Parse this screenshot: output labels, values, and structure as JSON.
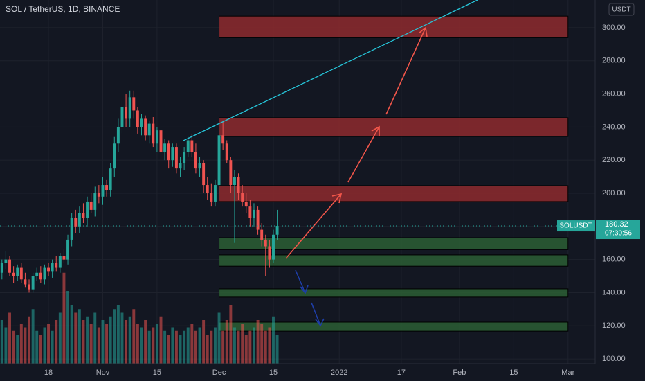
{
  "chart_data": {
    "type": "candlestick",
    "title": "SOL / TetherUS, 1D, BINANCE",
    "currency": "USDT",
    "symbol": "SOLUSDT",
    "last_price": {
      "value": 180.32,
      "label": "180.32"
    },
    "countdown": "07:30:56",
    "up_color": "#26a69a",
    "down_color": "#ef5350",
    "grid": true,
    "xlim": [
      4.5,
      158
    ],
    "xticks": [
      {
        "value": 17,
        "label": "18"
      },
      {
        "value": 31,
        "label": "Nov"
      },
      {
        "value": 45,
        "label": "15"
      },
      {
        "value": 61,
        "label": "Dec"
      },
      {
        "value": 75,
        "label": "15"
      },
      {
        "value": 92,
        "label": "2022"
      },
      {
        "value": 108,
        "label": "17"
      },
      {
        "value": 123,
        "label": "Feb"
      },
      {
        "value": 137,
        "label": "15"
      },
      {
        "value": 151,
        "label": "Mar"
      }
    ],
    "ylim": [
      97.1,
      316.7
    ],
    "yticks": [
      {
        "value": 100,
        "label": "100.00"
      },
      {
        "value": 120,
        "label": "120.00"
      },
      {
        "value": 140,
        "label": "140.00"
      },
      {
        "value": 160,
        "label": "160.00"
      },
      {
        "value": 180,
        "label": "180.00"
      },
      {
        "value": 200,
        "label": "200.00"
      },
      {
        "value": 220,
        "label": "220.00"
      },
      {
        "value": 240,
        "label": "240.00"
      },
      {
        "value": 260,
        "label": "260.00"
      },
      {
        "value": 280,
        "label": "280.00"
      },
      {
        "value": 300,
        "label": "300.00"
      }
    ],
    "y2lim": [
      0,
      100
    ],
    "x": [
      5,
      6,
      7,
      8,
      9,
      10,
      11,
      12,
      13,
      14,
      15,
      16,
      17,
      18,
      19,
      20,
      21,
      22,
      23,
      24,
      25,
      26,
      27,
      28,
      29,
      30,
      31,
      32,
      33,
      34,
      35,
      36,
      37,
      38,
      39,
      40,
      41,
      42,
      43,
      44,
      45,
      46,
      47,
      48,
      49,
      50,
      51,
      52,
      53,
      54,
      55,
      56,
      57,
      58,
      59,
      60,
      61,
      62,
      63,
      64,
      65,
      66,
      67,
      68,
      69,
      70,
      71,
      72,
      73,
      74,
      75,
      76
    ],
    "open": [
      152,
      158,
      160,
      152,
      150,
      155,
      148,
      145,
      142,
      150,
      152,
      148,
      155,
      153,
      158,
      155,
      162,
      160,
      172,
      185,
      180,
      188,
      185,
      195,
      190,
      200,
      198,
      205,
      202,
      215,
      230,
      240,
      252,
      245,
      258,
      250,
      240,
      245,
      235,
      242,
      230,
      238,
      225,
      230,
      220,
      228,
      215,
      218,
      225,
      232,
      225,
      215,
      218,
      205,
      200,
      195,
      205,
      235,
      230,
      220,
      205,
      210,
      200,
      195,
      192,
      185,
      190,
      178,
      172,
      168,
      160,
      175
    ],
    "high": [
      160,
      165,
      162,
      156,
      157,
      158,
      152,
      148,
      152,
      155,
      156,
      157,
      158,
      160,
      162,
      164,
      166,
      175,
      188,
      190,
      192,
      194,
      198,
      200,
      204,
      205,
      210,
      208,
      218,
      234,
      245,
      256,
      260,
      262,
      262,
      252,
      248,
      247,
      244,
      246,
      240,
      240,
      233,
      232,
      230,
      230,
      222,
      228,
      234,
      236,
      230,
      222,
      220,
      210,
      206,
      208,
      238,
      244,
      232,
      222,
      214,
      212,
      205,
      200,
      196,
      194,
      192,
      182,
      175,
      172,
      178,
      190
    ],
    "low": [
      148,
      154,
      150,
      146,
      147,
      146,
      143,
      140,
      140,
      147,
      146,
      145,
      150,
      149,
      153,
      152,
      158,
      157,
      168,
      176,
      176,
      182,
      180,
      188,
      186,
      194,
      193,
      198,
      198,
      210,
      225,
      236,
      240,
      240,
      245,
      236,
      235,
      232,
      230,
      228,
      225,
      222,
      220,
      215,
      216,
      212,
      210,
      214,
      222,
      222,
      212,
      210,
      200,
      196,
      192,
      192,
      200,
      226,
      218,
      200,
      170,
      196,
      192,
      188,
      180,
      180,
      175,
      168,
      150,
      155,
      158,
      172
    ],
    "close": [
      158,
      160,
      152,
      150,
      155,
      148,
      145,
      142,
      150,
      152,
      148,
      155,
      153,
      158,
      155,
      162,
      160,
      172,
      185,
      180,
      188,
      185,
      195,
      190,
      200,
      198,
      205,
      202,
      215,
      230,
      240,
      252,
      245,
      258,
      250,
      240,
      245,
      235,
      242,
      230,
      238,
      225,
      230,
      220,
      228,
      215,
      218,
      225,
      232,
      225,
      215,
      218,
      205,
      200,
      195,
      205,
      235,
      230,
      220,
      205,
      210,
      200,
      195,
      192,
      185,
      190,
      178,
      172,
      168,
      160,
      175,
      180.32
    ],
    "volume": [
      12,
      10,
      14,
      9,
      8,
      11,
      10,
      13,
      15,
      9,
      8,
      10,
      11,
      9,
      12,
      14,
      25,
      20,
      16,
      14,
      15,
      12,
      13,
      11,
      14,
      10,
      12,
      11,
      13,
      15,
      16,
      14,
      12,
      13,
      15,
      11,
      10,
      12,
      9,
      10,
      11,
      13,
      9,
      8,
      10,
      9,
      8,
      9,
      10,
      11,
      9,
      10,
      12,
      8,
      9,
      10,
      14,
      9,
      12,
      16,
      10,
      9,
      11,
      8,
      9,
      10,
      12,
      11,
      9,
      10,
      13,
      8
    ],
    "zones": [
      {
        "color": "#8e2a2e",
        "top": 307,
        "bottom": 294
      },
      {
        "color": "#8e2a2e",
        "top": 245.6,
        "bottom": 234.3
      },
      {
        "color": "#8e2a2e",
        "top": 204.6,
        "bottom": 195
      },
      {
        "color": "#2b5e34",
        "top": 173.2,
        "bottom": 166
      },
      {
        "color": "#2b5e34",
        "top": 162.8,
        "bottom": 156
      },
      {
        "color": "#2b5e34",
        "top": 142.3,
        "bottom": 137.3
      },
      {
        "color": "#2b5e34",
        "top": 122.2,
        "bottom": 116.7
      }
    ],
    "zone_start": 61,
    "zone_end": 151
  }
}
